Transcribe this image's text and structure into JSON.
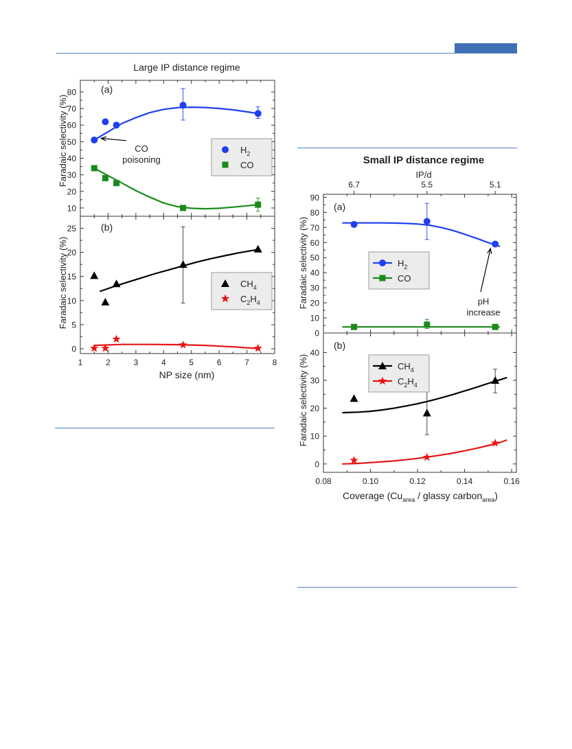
{
  "page": {
    "header_color": "#4f81bd",
    "tab_color": "#3f6fb5"
  },
  "chart_data": [
    {
      "id": "left",
      "title": "Large IP distance regime",
      "xlabel": "NP size (nm)",
      "xlim": [
        1,
        8
      ],
      "xticks": [
        "1",
        "2",
        "3",
        "4",
        "5",
        "6",
        "7",
        "8"
      ],
      "panels": [
        {
          "label": "(a)",
          "ylabel": "Faradaic selectivity (%)",
          "ylim": [
            5,
            87
          ],
          "yticks": [
            "10",
            "20",
            "30",
            "40",
            "50",
            "60",
            "70",
            "80"
          ],
          "series": [
            {
              "name_main": "H",
              "name_sub": "2",
              "color": "#1f3ff0",
              "marker": "circle",
              "x": [
                1.5,
                1.9,
                2.3,
                4.7,
                7.4
              ],
              "y": [
                51,
                62,
                60,
                72,
                67
              ],
              "errors": [
                {
                  "x": 4.7,
                  "lo": 63,
                  "hi": 82
                },
                {
                  "x": 7.4,
                  "lo": 64,
                  "hi": 71
                }
              ],
              "fit_x": [
                1.5,
                2.0,
                2.5,
                3.0,
                3.5,
                4.0,
                4.5,
                5.0,
                5.5,
                6.0,
                6.5,
                7.0,
                7.4
              ],
              "fit_y": [
                51,
                56,
                61,
                64.5,
                67.5,
                69.5,
                70.5,
                70.8,
                70.6,
                70.0,
                69.2,
                68.0,
                67.0
              ]
            },
            {
              "name_main": "CO",
              "name_sub": "",
              "color": "#1a8a1a",
              "marker": "square",
              "x": [
                1.5,
                1.9,
                2.3,
                4.7,
                7.4
              ],
              "y": [
                34,
                28,
                25,
                10,
                12
              ],
              "errors": [
                {
                  "x": 7.4,
                  "lo": 8,
                  "hi": 16
                }
              ],
              "fit_x": [
                1.5,
                2.0,
                2.5,
                3.0,
                3.5,
                4.0,
                4.5,
                5.0,
                5.5,
                6.0,
                6.5,
                7.0,
                7.4
              ],
              "fit_y": [
                34,
                29.5,
                25,
                20.5,
                16.5,
                13,
                10.8,
                9.8,
                9.5,
                9.8,
                10.5,
                11.3,
                12.0
              ]
            }
          ],
          "annotation": {
            "lines": [
              "CO",
              "poisoning"
            ],
            "x": 3.2,
            "y": 44,
            "arrow_to_x": 1.75,
            "arrow_to_y": 52
          }
        },
        {
          "label": "(b)",
          "ylabel": "Faradaic selectivity (%)",
          "ylim": [
            -1,
            27.5
          ],
          "yticks": [
            "0",
            "5",
            "10",
            "15",
            "20",
            "25"
          ],
          "series": [
            {
              "name_main": "CH",
              "name_sub": "4",
              "color": "#000000",
              "marker": "triangle",
              "x": [
                1.5,
                1.9,
                2.3,
                4.7,
                7.4
              ],
              "y": [
                15.2,
                9.7,
                13.5,
                17.5,
                20.7
              ],
              "errors": [
                {
                  "x": 4.7,
                  "lo": 9.5,
                  "hi": 25.3
                }
              ],
              "fit_x": [
                1.7,
                2.2,
                2.7,
                3.2,
                3.7,
                4.2,
                4.7,
                5.2,
                5.7,
                6.2,
                6.7,
                7.2,
                7.4
              ],
              "fit_y": [
                11.9,
                12.9,
                13.8,
                14.7,
                15.6,
                16.4,
                17.2,
                18.0,
                18.7,
                19.3,
                19.9,
                20.4,
                20.6
              ]
            },
            {
              "name_main": "C",
              "name_mid": "2",
              "name_main2": "H",
              "name_sub": "4",
              "color": "#e81414",
              "marker": "star",
              "x": [
                1.5,
                1.9,
                2.3,
                4.7,
                7.4
              ],
              "y": [
                0.1,
                0.1,
                2.0,
                0.8,
                0.1
              ],
              "errors": [],
              "fit_x": [
                1.5,
                2.5,
                3.5,
                4.5,
                5.5,
                6.5,
                7.4
              ],
              "fit_y": [
                0.7,
                0.9,
                0.9,
                0.85,
                0.7,
                0.4,
                0.05
              ]
            }
          ]
        }
      ]
    },
    {
      "id": "right",
      "title": "Small IP distance regime",
      "top_axis_label": "IP/d",
      "top_ticks": [
        {
          "x": 0.093,
          "label": "6.7"
        },
        {
          "x": 0.124,
          "label": "5.5"
        },
        {
          "x": 0.153,
          "label": "5.1"
        }
      ],
      "xlabel_main": "Coverage (Cu",
      "xlabel_sub1": "area",
      "xlabel_mid": " / glassy carbon",
      "xlabel_sub2": "area",
      "xlabel_end": ")",
      "xlim": [
        0.08,
        0.162
      ],
      "xticks": [
        "0.08",
        "0.10",
        "0.12",
        "0.14",
        "0.16"
      ],
      "panels": [
        {
          "label": "(a)",
          "ylabel": "Faradaic selectivity (%)",
          "ylim": [
            0,
            92
          ],
          "yticks": [
            "0",
            "10",
            "20",
            "30",
            "40",
            "50",
            "60",
            "70",
            "80",
            "90"
          ],
          "series": [
            {
              "name_main": "H",
              "name_sub": "2",
              "color": "#1f3ff0",
              "marker": "circle",
              "x": [
                0.093,
                0.124,
                0.153
              ],
              "y": [
                72,
                74,
                59
              ],
              "errors": [
                {
                  "x": 0.124,
                  "lo": 62,
                  "hi": 86
                }
              ],
              "fit_x": [
                0.088,
                0.095,
                0.1,
                0.105,
                0.11,
                0.115,
                0.12,
                0.125,
                0.13,
                0.135,
                0.14,
                0.145,
                0.15,
                0.155
              ],
              "fit_y": [
                73,
                73,
                73,
                73,
                72.9,
                72.7,
                72.3,
                71.5,
                70,
                68,
                65.5,
                62.8,
                60.0,
                57.5
              ]
            },
            {
              "name_main": "CO",
              "name_sub": "",
              "color": "#1a8a1a",
              "marker": "square",
              "x": [
                0.093,
                0.124,
                0.153
              ],
              "y": [
                4,
                5.5,
                4
              ],
              "errors": [
                {
                  "x": 0.124,
                  "lo": 3,
                  "hi": 9
                }
              ],
              "fit_x": [
                0.088,
                0.155
              ],
              "fit_y": [
                4,
                4
              ]
            }
          ],
          "annotation": {
            "lines": [
              "pH",
              "increase"
            ],
            "x": 0.148,
            "y": 19,
            "arrow_to_x": 0.151,
            "arrow_to_y": 56
          }
        },
        {
          "label": "(b)",
          "ylabel": "Faradaic selectivity (%)",
          "ylim": [
            -3,
            47
          ],
          "yticks": [
            "0",
            "10",
            "20",
            "30",
            "40"
          ],
          "series": [
            {
              "name_main": "CH",
              "name_sub": "4",
              "color": "#000000",
              "marker": "triangle",
              "x": [
                0.093,
                0.124,
                0.153
              ],
              "y": [
                23.5,
                18.3,
                30
              ],
              "errors": [
                {
                  "x": 0.124,
                  "lo": 10.5,
                  "hi": 25.8
                },
                {
                  "x": 0.153,
                  "lo": 25.5,
                  "hi": 34
                }
              ],
              "fit_x": [
                0.088,
                0.095,
                0.1,
                0.105,
                0.11,
                0.115,
                0.12,
                0.125,
                0.13,
                0.135,
                0.14,
                0.145,
                0.15,
                0.155,
                0.158
              ],
              "fit_y": [
                18.4,
                18.6,
                18.9,
                19.4,
                20.0,
                20.8,
                21.6,
                22.6,
                23.7,
                24.9,
                26.2,
                27.5,
                28.9,
                30.2,
                31.0
              ]
            },
            {
              "name_main": "C",
              "name_mid": "2",
              "name_main2": "H",
              "name_sub": "4",
              "color": "#e81414",
              "marker": "star",
              "x": [
                0.093,
                0.124,
                0.153
              ],
              "y": [
                1.3,
                2.4,
                7.5
              ],
              "errors": [],
              "fit_x": [
                0.088,
                0.095,
                0.1,
                0.105,
                0.11,
                0.115,
                0.12,
                0.125,
                0.13,
                0.135,
                0.14,
                0.145,
                0.15,
                0.155,
                0.158
              ],
              "fit_y": [
                0.0,
                0.2,
                0.5,
                0.8,
                1.1,
                1.5,
                2.0,
                2.6,
                3.2,
                3.9,
                4.7,
                5.6,
                6.6,
                7.7,
                8.6
              ]
            }
          ]
        }
      ]
    }
  ]
}
